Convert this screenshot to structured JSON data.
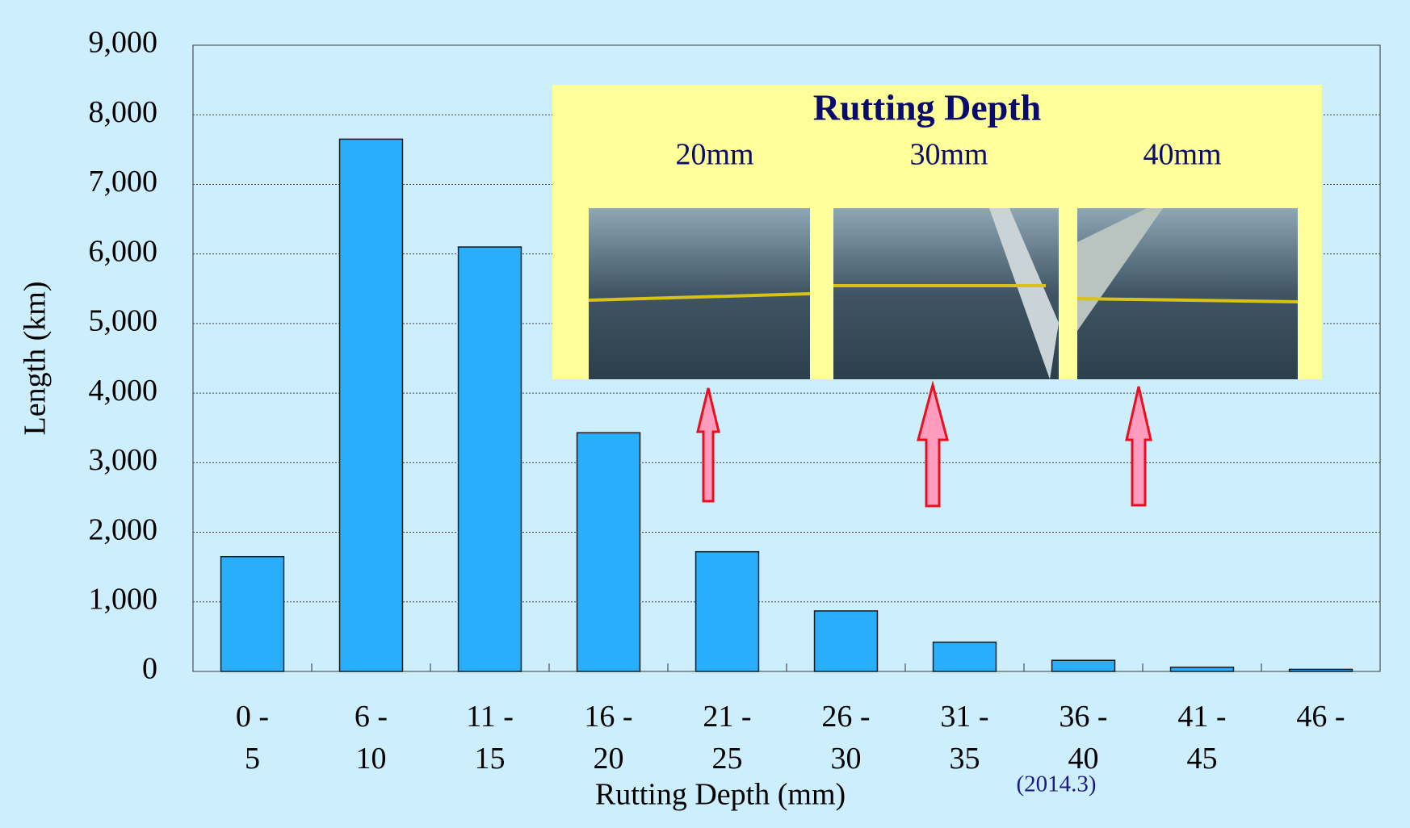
{
  "chart_data": {
    "type": "bar",
    "title": "Rutting Depth",
    "x_label": "Rutting Depth (mm)",
    "y_label": "Length (km)",
    "categories": [
      "0 -\n5",
      "6 -\n10",
      "11 -\n15",
      "16 -\n20",
      "21 -\n25",
      "26 -\n30",
      "31 -\n35",
      "36 -\n40",
      "41 -\n45",
      "46 -"
    ],
    "values": [
      1650,
      7650,
      6100,
      3430,
      1720,
      870,
      420,
      160,
      60,
      30
    ],
    "color": "#29aefc",
    "ylim": [
      0,
      9000
    ],
    "yticks": [
      0,
      {
        "value": 1000,
        "label": "1,000"
      },
      {
        "value": 2000,
        "label": "2,000"
      },
      {
        "value": 3000,
        "label": "3,000"
      },
      {
        "value": 4000,
        "label": "4,000"
      },
      {
        "value": 5000,
        "label": "5,000"
      },
      {
        "value": 6000,
        "label": "6,000"
      },
      {
        "value": 7000,
        "label": "7,000"
      },
      {
        "value": 8000,
        "label": "8,000"
      },
      {
        "value": 9000,
        "label": "9,000"
      }
    ],
    "grid": true,
    "inset_labels": [
      "20mm",
      "30mm",
      "40mm"
    ],
    "annotation": "(2014.3)"
  }
}
